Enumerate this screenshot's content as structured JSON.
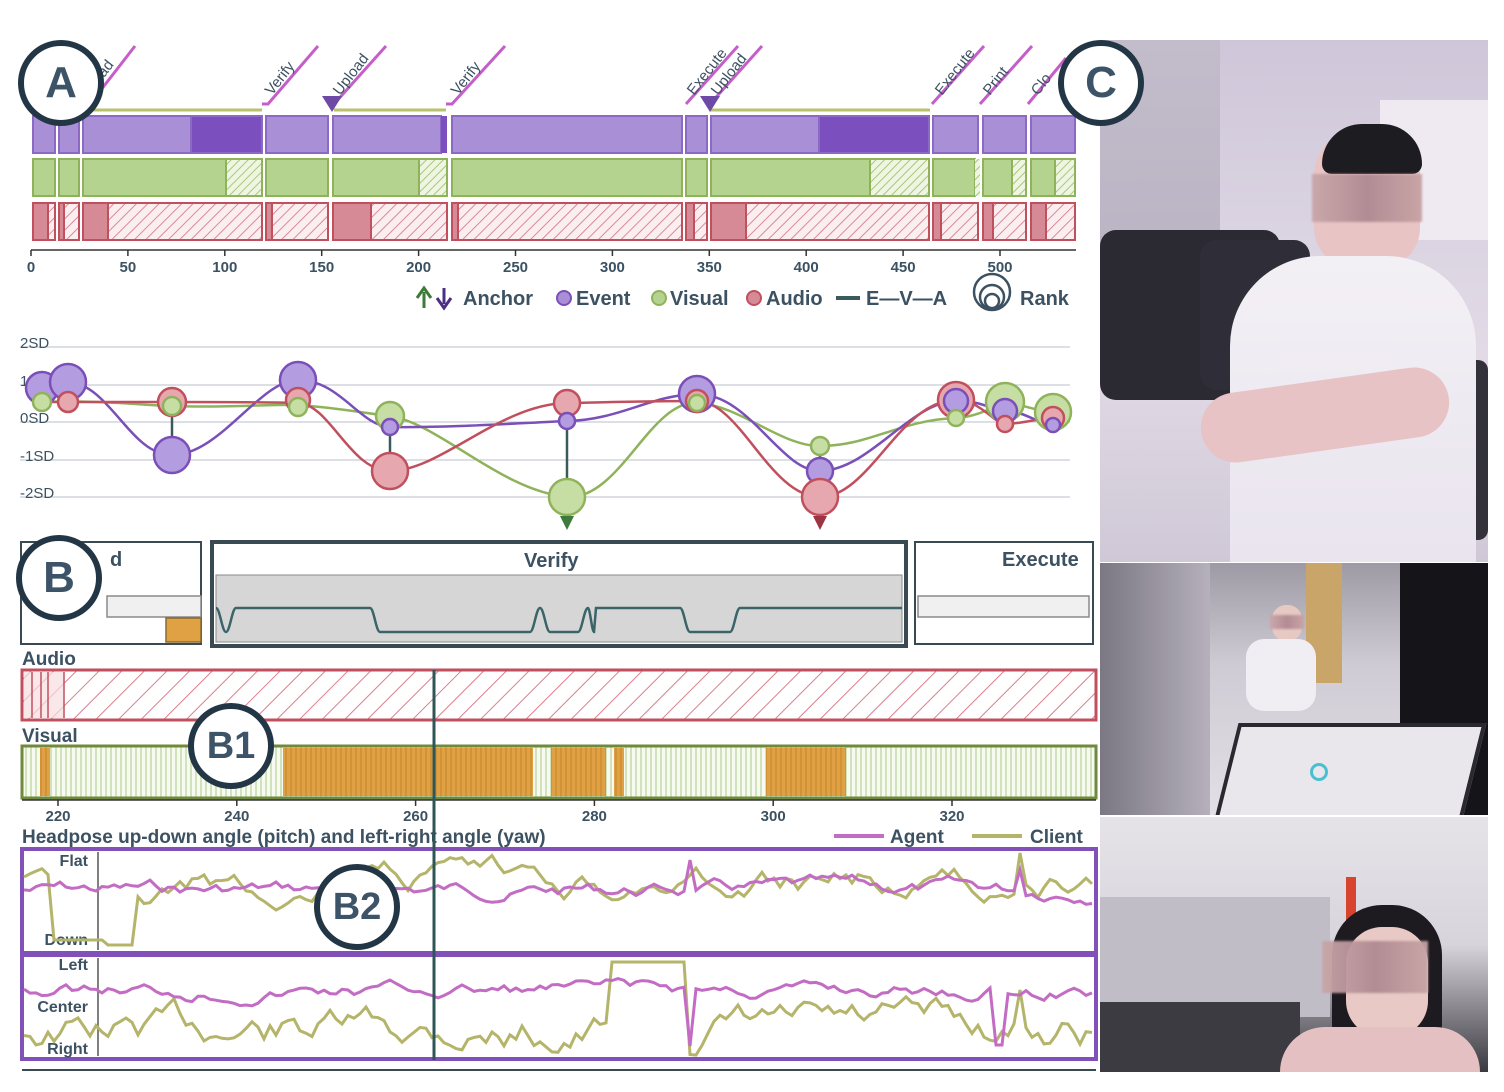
{
  "panel_labels": {
    "a": "A",
    "b": "B",
    "b1": "B1",
    "b2": "B2",
    "c": "C"
  },
  "timeline": {
    "stage_tags": [
      "ad",
      "Verify",
      "Upload",
      "Verify",
      "Execute",
      "Upload",
      "Execute",
      "Print",
      "Clo"
    ],
    "x_ticks": [
      "0",
      "50",
      "100",
      "150",
      "200",
      "250",
      "300",
      "350",
      "400",
      "450",
      "500"
    ],
    "legend": {
      "anchor": "Anchor",
      "event": "Event",
      "visual": "Visual",
      "audio": "Audio",
      "eva": "E—V—A",
      "rank": "Rank"
    }
  },
  "deviation_chart": {
    "y_labels": [
      "2SD",
      "1SD",
      "0SD",
      "-1SD",
      "-2SD"
    ]
  },
  "stage_panel": {
    "stages": [
      {
        "label": "d"
      },
      {
        "label": "Verify"
      },
      {
        "label": "Execute"
      }
    ]
  },
  "detail": {
    "audio_label": "Audio",
    "visual_label": "Visual",
    "x_ticks": [
      "220",
      "240",
      "260",
      "280",
      "300",
      "320"
    ],
    "headpose_title": "Headpose up-down angle (pitch) and left-right angle (yaw)",
    "legend_agent": "Agent",
    "legend_client": "Client",
    "pitch_labels": [
      "Flat",
      "Down"
    ],
    "yaw_labels": [
      "Left",
      "Center",
      "Right"
    ]
  },
  "colors": {
    "event": "#a98fd6",
    "event_dark": "#7a4fb8",
    "visual": "#b4d38e",
    "visual_dark": "#8fb35a",
    "audio": "#d58a96",
    "audio_dark": "#c0505e",
    "orange": "#e0a144",
    "agent": "#c36cc4",
    "client": "#b4b46a",
    "text": "#3c5161"
  }
}
